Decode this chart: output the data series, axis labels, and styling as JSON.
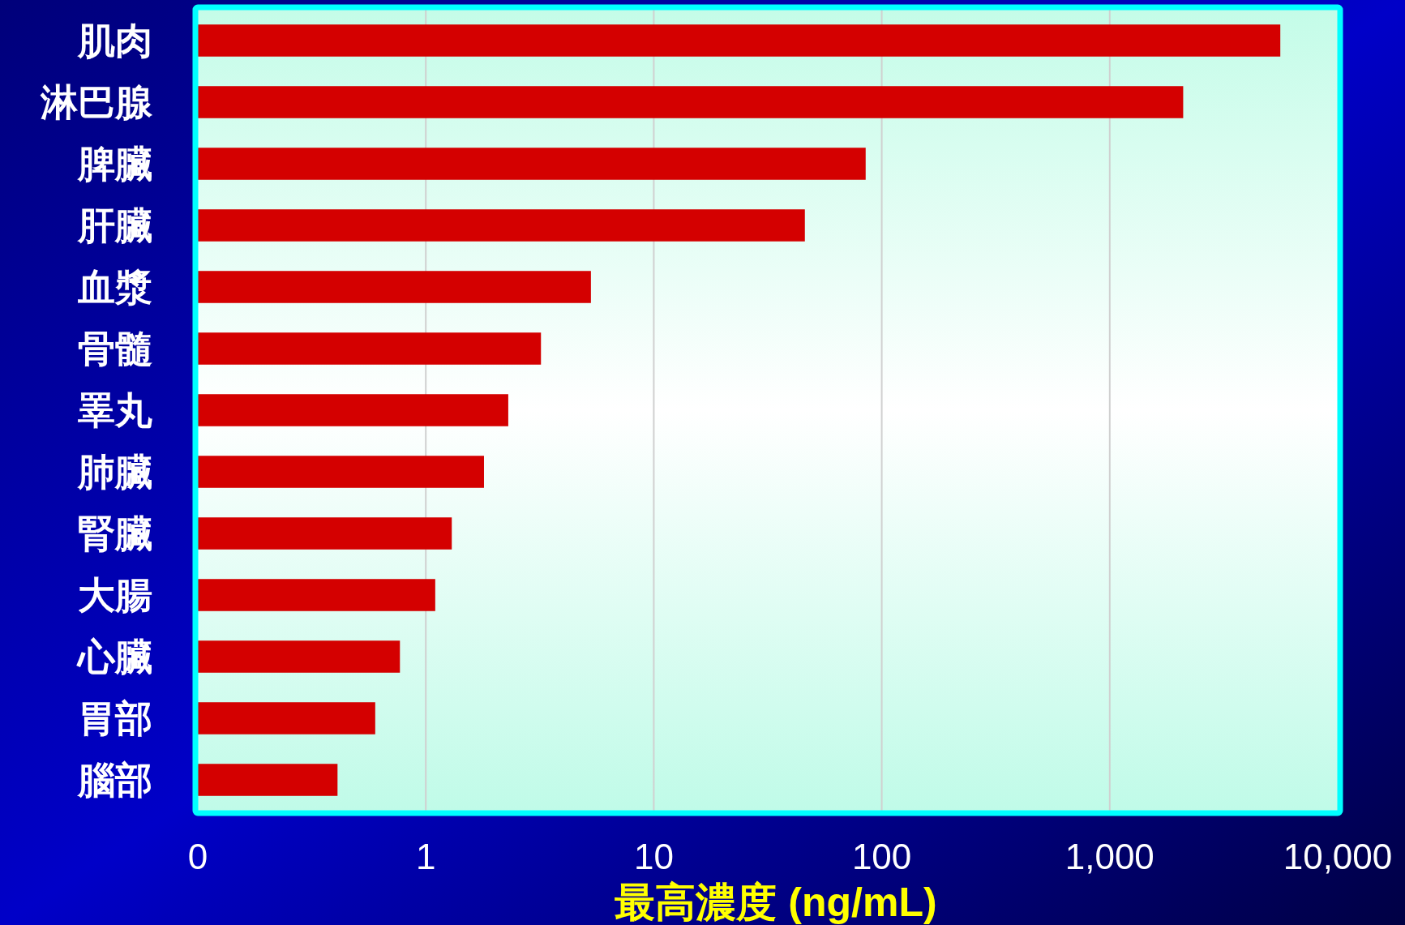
{
  "chart_data": {
    "type": "bar",
    "orientation": "horizontal",
    "log": "x",
    "grid": "x",
    "color": "#d40000",
    "categories": [
      "肌肉",
      "淋巴腺",
      "脾臟",
      "肝臟",
      "血漿",
      "骨髓",
      "睪丸",
      "肺臟",
      "腎臟",
      "大腸",
      "心臟",
      "胃部",
      "腦部"
    ],
    "values": [
      5600,
      2100,
      85,
      46,
      5.3,
      3.2,
      2.3,
      1.8,
      1.3,
      1.1,
      0.77,
      0.6,
      0.41
    ],
    "xlabel": "最高濃度 (ng/mL)",
    "xlim": [
      0.1,
      10000
    ],
    "xticks": [
      {
        "value": 0.1,
        "label": "0"
      },
      1,
      10,
      100,
      {
        "value": 1000,
        "label": "1,000"
      },
      {
        "value": 10000,
        "label": "10,000"
      }
    ]
  }
}
